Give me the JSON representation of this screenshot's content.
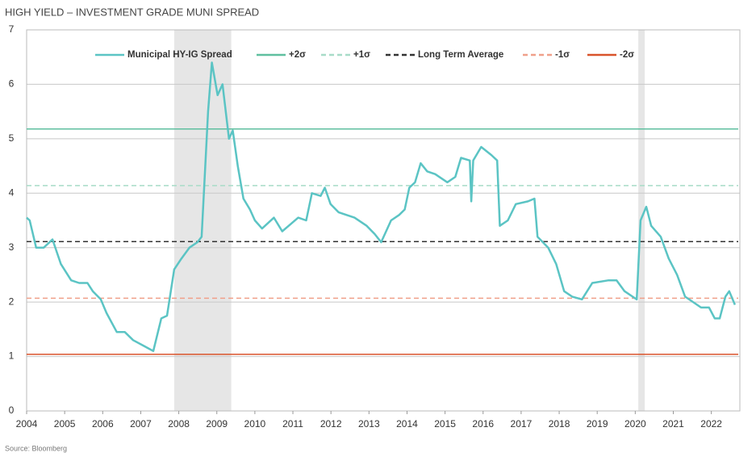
{
  "chart_data": {
    "type": "line",
    "title": "HIGH YIELD – INVESTMENT GRADE MUNI SPREAD",
    "source": "Source: Bloomberg",
    "xlim": [
      2004,
      2022.75
    ],
    "xticks": [
      2004,
      2005,
      2006,
      2007,
      2008,
      2009,
      2010,
      2011,
      2012,
      2013,
      2014,
      2015,
      2016,
      2017,
      2018,
      2019,
      2020,
      2021,
      2022
    ],
    "ylim": [
      0,
      7
    ],
    "yticks": [
      0,
      1,
      2,
      3,
      4,
      5,
      6,
      7
    ],
    "grid": true,
    "legend": "top",
    "shaded_periods": [
      [
        2007.88,
        2009.38
      ],
      [
        2020.08,
        2020.25
      ]
    ],
    "shade_color": "#e6e6e6",
    "x": [
      2004.0,
      2004.08,
      2004.25,
      2004.45,
      2004.68,
      2004.9,
      2005.17,
      2005.38,
      2005.6,
      2005.74,
      2005.95,
      2006.1,
      2006.37,
      2006.58,
      2006.8,
      2007.07,
      2007.2,
      2007.33,
      2007.54,
      2007.69,
      2007.88,
      2008.07,
      2008.28,
      2008.49,
      2008.6,
      2008.77,
      2008.87,
      2009.02,
      2009.15,
      2009.32,
      2009.42,
      2009.55,
      2009.7,
      2009.87,
      2010.0,
      2010.19,
      2010.5,
      2010.72,
      2010.89,
      2011.14,
      2011.35,
      2011.5,
      2011.73,
      2011.84,
      2011.99,
      2012.2,
      2012.62,
      2012.94,
      2013.15,
      2013.32,
      2013.58,
      2013.79,
      2013.94,
      2014.06,
      2014.21,
      2014.36,
      2014.53,
      2014.74,
      2015.06,
      2015.27,
      2015.42,
      2015.65,
      2015.69,
      2015.74,
      2015.95,
      2016.22,
      2016.37,
      2016.44,
      2016.65,
      2016.86,
      2017.18,
      2017.35,
      2017.43,
      2017.71,
      2017.92,
      2018.13,
      2018.34,
      2018.6,
      2018.87,
      2019.3,
      2019.51,
      2019.72,
      2019.93,
      2020.04,
      2020.14,
      2020.29,
      2020.42,
      2020.67,
      2020.88,
      2021.1,
      2021.31,
      2021.52,
      2021.73,
      2021.94,
      2022.09,
      2022.22,
      2022.37,
      2022.47,
      2022.62
    ],
    "series": [
      {
        "name": "Municipal HY-IG Spread",
        "color": "#5bc4c4",
        "values": [
          3.55,
          3.5,
          3.0,
          3.0,
          3.15,
          2.7,
          2.4,
          2.35,
          2.35,
          2.2,
          2.05,
          1.8,
          1.45,
          1.45,
          1.3,
          1.2,
          1.15,
          1.1,
          1.7,
          1.75,
          2.6,
          2.8,
          3.0,
          3.1,
          3.2,
          5.5,
          6.4,
          5.8,
          6.0,
          5.0,
          5.15,
          4.5,
          3.9,
          3.7,
          3.5,
          3.35,
          3.55,
          3.3,
          3.4,
          3.55,
          3.5,
          4.0,
          3.95,
          4.1,
          3.8,
          3.65,
          3.55,
          3.4,
          3.25,
          3.1,
          3.5,
          3.6,
          3.7,
          4.1,
          4.2,
          4.55,
          4.4,
          4.35,
          4.2,
          4.3,
          4.65,
          4.6,
          3.85,
          4.6,
          4.85,
          4.7,
          4.6,
          3.4,
          3.5,
          3.8,
          3.85,
          3.9,
          3.2,
          3.0,
          2.7,
          2.2,
          2.1,
          2.05,
          2.35,
          2.4,
          2.4,
          2.2,
          2.1,
          2.05,
          3.5,
          3.75,
          3.4,
          3.2,
          2.8,
          2.5,
          2.1,
          2.0,
          1.9,
          1.9,
          1.7,
          1.7,
          2.1,
          2.2,
          1.95
        ]
      }
    ],
    "reference_lines": [
      {
        "name": "+2σ",
        "value": 5.18,
        "color": "#5fbf9f",
        "dashed": false
      },
      {
        "name": "+1σ",
        "value": 4.14,
        "color": "#a8dcc8",
        "dashed": true
      },
      {
        "name": "Long Term Average",
        "value": 3.11,
        "color": "#333333",
        "dashed": true
      },
      {
        "name": "-1σ",
        "value": 2.07,
        "color": "#f0a08a",
        "dashed": true
      },
      {
        "name": "-2σ",
        "value": 1.04,
        "color": "#d9532b",
        "dashed": false
      }
    ]
  }
}
